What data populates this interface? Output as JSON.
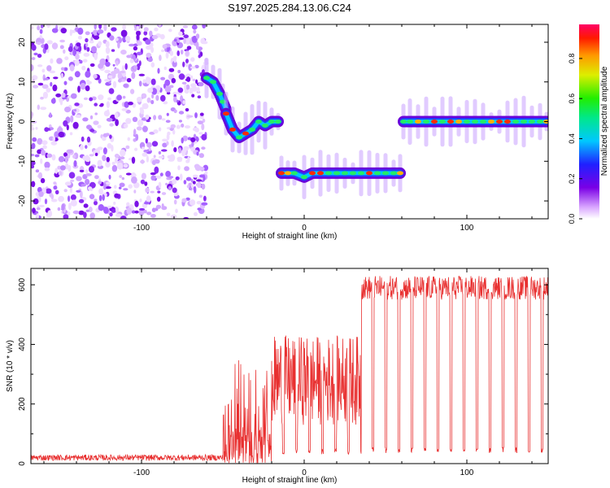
{
  "figure_title": "S197.2025.284.13.06.C24",
  "chart_data": [
    {
      "type": "heatmap",
      "title": "S197.2025.284.13.06.C24",
      "xlabel": "Height of straight line (km)",
      "ylabel": "Frequency (Hz)",
      "xlim": [
        -168,
        150
      ],
      "ylim": [
        -24.5,
        24.5
      ],
      "xticks": [
        -100,
        0,
        100
      ],
      "yticks": [
        -20,
        -10,
        0,
        10,
        20
      ],
      "colorbar": {
        "label": "Normalized spectral amplitude",
        "range": [
          0.0,
          0.97
        ],
        "ticks": [
          0.0,
          0.2,
          0.4,
          0.6,
          0.8
        ],
        "tick_labels": [
          "0.0",
          "0.2",
          "0.4",
          "0.6",
          "0.8"
        ],
        "colormap": "rainbow (magenta-blue-cyan-green-yellow-red)"
      },
      "noise_region_x": [
        -168,
        -60
      ],
      "tracks": [
        {
          "x": [
            -60,
            -56,
            -52,
            -50,
            -48
          ],
          "y": [
            11,
            10,
            7,
            5,
            3
          ],
          "amplitude": 0.4
        },
        {
          "x": [
            -48,
            -44,
            -40,
            -36,
            -32,
            -28,
            -24,
            -20,
            -16
          ],
          "y": [
            2,
            -2,
            -4,
            -3,
            -2,
            0,
            -1,
            0,
            0
          ],
          "amplitude": 0.45
        },
        {
          "x": [
            -14,
            -10,
            -6,
            0,
            5,
            10,
            15,
            20,
            25,
            30,
            35,
            40,
            45,
            50,
            55,
            59
          ],
          "y": [
            -13,
            -13,
            -13,
            -14,
            -13,
            -13,
            -13,
            -13,
            -13,
            -13,
            -13,
            -13,
            -13,
            -13,
            -13,
            -13
          ],
          "amplitude": 0.7
        },
        {
          "x": [
            61,
            65,
            70,
            75,
            80,
            85,
            90,
            95,
            100,
            105,
            110,
            115,
            120,
            125,
            130,
            135,
            140,
            145,
            149
          ],
          "y": [
            0,
            0,
            0,
            0,
            0,
            0,
            0,
            0,
            0,
            0,
            0,
            0,
            0,
            0,
            0,
            0,
            0,
            0,
            0
          ],
          "amplitude": 0.75
        }
      ]
    },
    {
      "type": "line",
      "xlabel": "Height of straight line (km)",
      "ylabel": "SNR (10 * v/v)",
      "xlim": [
        -168,
        150
      ],
      "ylim": [
        0,
        655
      ],
      "xticks": [
        -100,
        0,
        100
      ],
      "yticks": [
        0,
        200,
        400,
        600
      ],
      "color": "#e83030",
      "series": [
        {
          "name": "SNR",
          "segments": [
            {
              "x": [
                -168,
                -50
              ],
              "baseline": 20,
              "noise": 10
            },
            {
              "x": [
                -50,
                -20
              ],
              "baseline": 120,
              "noise": 230
            },
            {
              "x": [
                -20,
                35
              ],
              "baseline": 280,
              "noise": 150,
              "dropouts_to": 30
            },
            {
              "x": [
                35,
                150
              ],
              "baseline": 590,
              "noise": 40,
              "dropouts_to": 35
            }
          ]
        }
      ]
    }
  ]
}
